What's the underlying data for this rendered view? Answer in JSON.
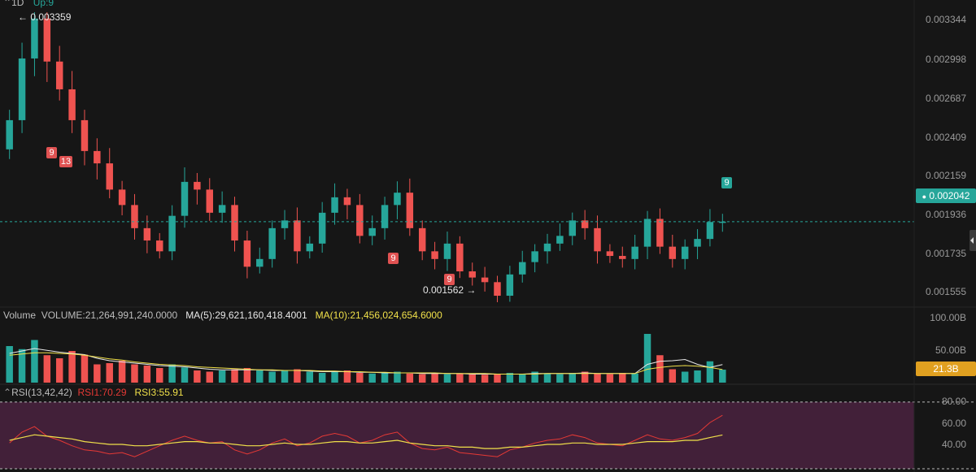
{
  "header": {
    "interval": "1D",
    "signal": "Up:9",
    "signal_color": "#26a69a"
  },
  "price_axis": {
    "ticks": [
      "0.003344",
      "0.002998",
      "0.002687",
      "0.002409",
      "0.002159",
      "0.001936",
      "0.001735",
      "0.001555"
    ],
    "current_price": "0.002042",
    "current_color": "#26a69a"
  },
  "annotations": {
    "high_label": "← 0.003359",
    "low_label": "0.001562 →",
    "badges": [
      {
        "text": "9",
        "color": "#e05252",
        "kind": "sell"
      },
      {
        "text": "13",
        "color": "#e05252",
        "kind": "sell"
      },
      {
        "text": "9",
        "color": "#e05252",
        "kind": "buy-count"
      },
      {
        "text": "9",
        "color": "#e05252",
        "kind": "buy-count"
      },
      {
        "text": "9",
        "color": "#26a69a",
        "kind": "up"
      }
    ]
  },
  "volume_panel": {
    "title": "Volume",
    "volume": "VOLUME:21,264,991,240.0000",
    "ma5": "MA(5):29,621,160,418.4001",
    "ma10": "MA(10):21,456,024,654.6000",
    "ticks": [
      "100.00B",
      "50.00B"
    ],
    "current": "21.3B",
    "ma5_color": "#e8e8e8",
    "ma10_color": "#f0e04a"
  },
  "rsi_panel": {
    "title": "RSI(13,42,42)",
    "rsi1": "RSI1:70.29",
    "rsi3": "RSI3:55.91",
    "ticks": [
      "80.00",
      "60.00",
      "40.00"
    ],
    "rsi1_color": "#e53935",
    "rsi3_color": "#f0e04a",
    "fill_color": "#4a2240"
  },
  "chart_data": {
    "type": "candlestick",
    "up_color": "#26a69a",
    "down_color": "#ef5350",
    "ylim": [
      0.00152,
      0.0034
    ],
    "reference_price": 0.002042,
    "high": 0.003359,
    "low": 0.001562,
    "close": [
      0.0027,
      0.0031,
      0.003359,
      0.00308,
      0.0029,
      0.0027,
      0.0025,
      0.00242,
      0.00225,
      0.00215,
      0.002,
      0.00192,
      0.00185,
      0.00208,
      0.0023,
      0.00225,
      0.0021,
      0.00215,
      0.00192,
      0.00175,
      0.0018,
      0.002,
      0.00205,
      0.00185,
      0.0019,
      0.0021,
      0.0022,
      0.00215,
      0.00195,
      0.002,
      0.00215,
      0.00223,
      0.002,
      0.00185,
      0.0018,
      0.0019,
      0.00172,
      0.00168,
      0.00165,
      0.001562,
      0.0017,
      0.00178,
      0.00185,
      0.0019,
      0.00195,
      0.00205,
      0.002,
      0.00185,
      0.00182,
      0.0018,
      0.00188,
      0.00206,
      0.00188,
      0.0018,
      0.00188,
      0.00193,
      0.00204,
      0.002042
    ],
    "volume_B": [
      60,
      55,
      70,
      45,
      40,
      52,
      46,
      30,
      32,
      36,
      30,
      28,
      24,
      30,
      25,
      20,
      18,
      20,
      22,
      24,
      20,
      18,
      20,
      22,
      18,
      16,
      18,
      20,
      16,
      15,
      16,
      18,
      15,
      14,
      16,
      14,
      15,
      14,
      13,
      14,
      16,
      14,
      18,
      15,
      14,
      16,
      18,
      15,
      14,
      16,
      15,
      80,
      45,
      22,
      18,
      20,
      35,
      21.3
    ],
    "volume_ma5_B": [
      48,
      52,
      56,
      53,
      50,
      48,
      46,
      40,
      36,
      34,
      32,
      30,
      28,
      27,
      26,
      24,
      22,
      21,
      21,
      21,
      21,
      20,
      20,
      20,
      19,
      18,
      18,
      18,
      17,
      17,
      16,
      16,
      16,
      15,
      15,
      15,
      15,
      14,
      14,
      14,
      14,
      14,
      15,
      15,
      15,
      15,
      16,
      15,
      15,
      15,
      15,
      30,
      35,
      36,
      38,
      30,
      25,
      29.6
    ],
    "volume_ma10_B": [
      45,
      47,
      49,
      49,
      48,
      47,
      45,
      42,
      39,
      37,
      34,
      32,
      30,
      29,
      28,
      26,
      25,
      24,
      23,
      22,
      21,
      21,
      20,
      20,
      20,
      19,
      19,
      18,
      18,
      17,
      17,
      16,
      16,
      16,
      16,
      15,
      15,
      15,
      15,
      14,
      14,
      14,
      14,
      15,
      15,
      15,
      15,
      15,
      15,
      15,
      15,
      22,
      25,
      27,
      28,
      27,
      25,
      21.5
    ],
    "rsi1": [
      50,
      58,
      62,
      55,
      52,
      48,
      45,
      44,
      42,
      43,
      40,
      44,
      48,
      52,
      55,
      52,
      50,
      51,
      45,
      42,
      45,
      50,
      53,
      48,
      50,
      55,
      57,
      55,
      50,
      52,
      56,
      58,
      50,
      46,
      45,
      47,
      43,
      42,
      41,
      40,
      45,
      47,
      50,
      52,
      53,
      56,
      54,
      50,
      49,
      48,
      52,
      56,
      53,
      52,
      54,
      57,
      65,
      70.29
    ],
    "rsi3": [
      52,
      54,
      56,
      55,
      54,
      53,
      51,
      50,
      49,
      49,
      48,
      48,
      49,
      50,
      51,
      51,
      50,
      50,
      49,
      48,
      48,
      49,
      50,
      49,
      49,
      50,
      51,
      51,
      50,
      50,
      51,
      52,
      50,
      49,
      48,
      48,
      47,
      47,
      46,
      46,
      47,
      47,
      48,
      49,
      49,
      50,
      50,
      49,
      49,
      49,
      50,
      51,
      51,
      51,
      52,
      52,
      54,
      55.91
    ],
    "rsi_ylim": [
      30,
      90
    ],
    "rsi_levels": [
      80,
      40
    ]
  }
}
